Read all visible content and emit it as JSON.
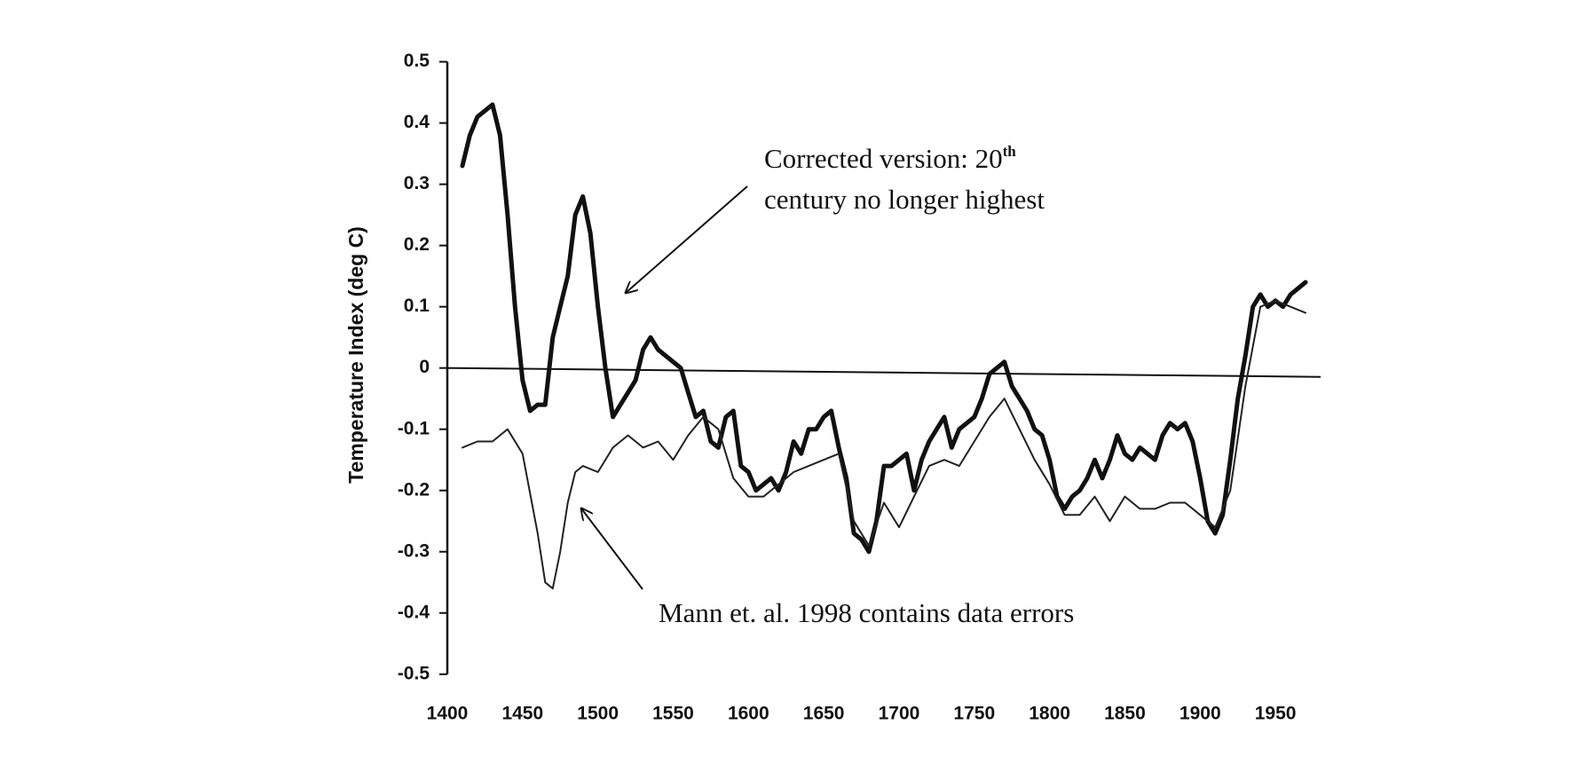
{
  "chart_data": {
    "type": "line",
    "ylabel": "Temperature Index (deg C)",
    "xlim": [
      1400,
      1980
    ],
    "xticks": [
      1400,
      1450,
      1500,
      1550,
      1600,
      1650,
      1700,
      1750,
      1800,
      1850,
      1900,
      1950
    ],
    "ylim": [
      -0.5,
      0.5
    ],
    "yticks": [
      0.5,
      0.4,
      0.3,
      0.2,
      0.1,
      0,
      -0.1,
      -0.2,
      -0.3,
      -0.4,
      -0.5
    ],
    "annotations": [
      {
        "lines": [
          "Corrected version: 20",
          "century no longer highest"
        ],
        "superscript": "th"
      },
      {
        "lines": [
          "Mann et. al. 1998 contains data errors"
        ]
      }
    ],
    "series": [
      {
        "color": "#111111",
        "width": 5,
        "x": [
          1410,
          1415,
          1420,
          1425,
          1430,
          1435,
          1440,
          1445,
          1450,
          1455,
          1460,
          1465,
          1470,
          1475,
          1480,
          1485,
          1490,
          1495,
          1500,
          1505,
          1510,
          1515,
          1520,
          1525,
          1530,
          1535,
          1540,
          1545,
          1550,
          1555,
          1560,
          1565,
          1570,
          1575,
          1580,
          1585,
          1590,
          1595,
          1600,
          1605,
          1610,
          1615,
          1620,
          1625,
          1630,
          1635,
          1640,
          1645,
          1650,
          1655,
          1660,
          1665,
          1670,
          1675,
          1680,
          1685,
          1690,
          1695,
          1700,
          1705,
          1710,
          1715,
          1720,
          1725,
          1730,
          1735,
          1740,
          1745,
          1750,
          1755,
          1760,
          1765,
          1770,
          1775,
          1780,
          1785,
          1790,
          1795,
          1800,
          1805,
          1810,
          1815,
          1820,
          1825,
          1830,
          1835,
          1840,
          1845,
          1850,
          1855,
          1860,
          1865,
          1870,
          1875,
          1880,
          1885,
          1890,
          1895,
          1900,
          1905,
          1910,
          1915,
          1920,
          1925,
          1930,
          1935,
          1940,
          1945,
          1950,
          1955,
          1960,
          1965,
          1970
        ],
        "values": [
          0.33,
          0.38,
          0.41,
          0.42,
          0.43,
          0.38,
          0.25,
          0.1,
          -0.02,
          -0.07,
          -0.06,
          -0.06,
          0.05,
          0.1,
          0.15,
          0.25,
          0.28,
          0.22,
          0.1,
          0.0,
          -0.08,
          -0.06,
          -0.04,
          -0.02,
          0.03,
          0.05,
          0.03,
          0.02,
          0.01,
          0.0,
          -0.04,
          -0.08,
          -0.07,
          -0.12,
          -0.13,
          -0.08,
          -0.07,
          -0.16,
          -0.17,
          -0.2,
          -0.19,
          -0.18,
          -0.2,
          -0.17,
          -0.12,
          -0.14,
          -0.1,
          -0.1,
          -0.08,
          -0.07,
          -0.13,
          -0.18,
          -0.27,
          -0.28,
          -0.3,
          -0.25,
          -0.16,
          -0.16,
          -0.15,
          -0.14,
          -0.2,
          -0.15,
          -0.12,
          -0.1,
          -0.08,
          -0.13,
          -0.1,
          -0.09,
          -0.08,
          -0.05,
          -0.01,
          0.0,
          0.01,
          -0.03,
          -0.05,
          -0.07,
          -0.1,
          -0.11,
          -0.15,
          -0.21,
          -0.23,
          -0.21,
          -0.2,
          -0.18,
          -0.15,
          -0.18,
          -0.15,
          -0.11,
          -0.14,
          -0.15,
          -0.13,
          -0.14,
          -0.15,
          -0.11,
          -0.09,
          -0.1,
          -0.09,
          -0.12,
          -0.18,
          -0.25,
          -0.27,
          -0.24,
          -0.15,
          -0.05,
          0.02,
          0.1,
          0.12,
          0.1,
          0.11,
          0.1,
          0.12,
          0.13,
          0.14
        ]
      },
      {
        "color": "#222222",
        "width": 2,
        "x": [
          1410,
          1420,
          1430,
          1440,
          1450,
          1460,
          1465,
          1470,
          1475,
          1480,
          1485,
          1490,
          1500,
          1510,
          1520,
          1530,
          1540,
          1550,
          1560,
          1570,
          1580,
          1590,
          1600,
          1610,
          1620,
          1630,
          1640,
          1650,
          1660,
          1670,
          1680,
          1690,
          1700,
          1710,
          1720,
          1730,
          1740,
          1750,
          1760,
          1770,
          1780,
          1790,
          1800,
          1810,
          1820,
          1830,
          1840,
          1850,
          1860,
          1870,
          1880,
          1890,
          1900,
          1910,
          1920,
          1930,
          1940,
          1950,
          1960,
          1970
        ],
        "values": [
          -0.13,
          -0.12,
          -0.12,
          -0.1,
          -0.14,
          -0.27,
          -0.35,
          -0.36,
          -0.3,
          -0.22,
          -0.17,
          -0.16,
          -0.17,
          -0.13,
          -0.11,
          -0.13,
          -0.12,
          -0.15,
          -0.11,
          -0.08,
          -0.1,
          -0.18,
          -0.21,
          -0.21,
          -0.19,
          -0.17,
          -0.16,
          -0.15,
          -0.14,
          -0.25,
          -0.29,
          -0.22,
          -0.26,
          -0.21,
          -0.16,
          -0.15,
          -0.16,
          -0.12,
          -0.08,
          -0.05,
          -0.1,
          -0.15,
          -0.19,
          -0.24,
          -0.24,
          -0.21,
          -0.25,
          -0.21,
          -0.23,
          -0.23,
          -0.22,
          -0.22,
          -0.24,
          -0.26,
          -0.2,
          -0.03,
          0.1,
          0.11,
          0.1,
          0.09
        ]
      }
    ]
  }
}
